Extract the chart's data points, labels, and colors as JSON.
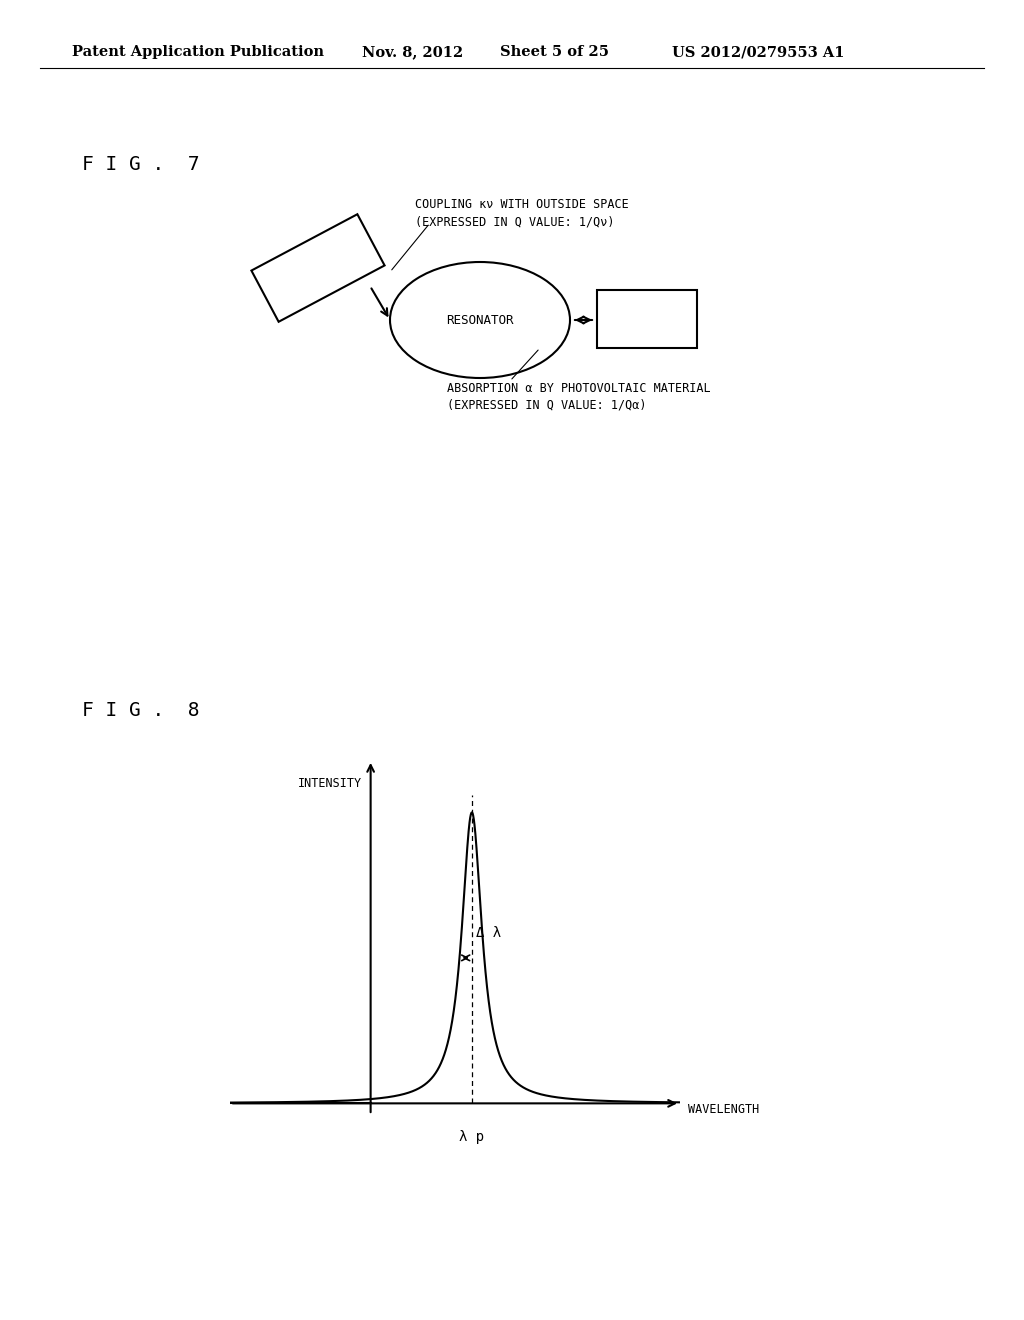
{
  "background_color": "#ffffff",
  "header_text": "Patent Application Publication",
  "header_date": "Nov. 8, 2012",
  "header_sheet": "Sheet 5 of 25",
  "header_patent": "US 2012/0279553 A1",
  "fig7_label": "F I G .  7",
  "fig8_label": "F I G .  8",
  "coupling_label_line1": "COUPLING κν WITH OUTSIDE SPACE",
  "coupling_label_line2": "(EXPRESSED IN Q VALUE: 1/Qν)",
  "absorption_label_line1": "ABSORPTION α BY PHOTOVOLTAIC MATERIAL",
  "absorption_label_line2": "(EXPRESSED IN Q VALUE: 1/Qα)",
  "resonator_label": "RESONATOR",
  "intensity_label": "INTENSITY",
  "wavelength_label": "WAVELENGTH",
  "lambda_p_label": "λ p",
  "delta_lambda_label": "Δ λ"
}
